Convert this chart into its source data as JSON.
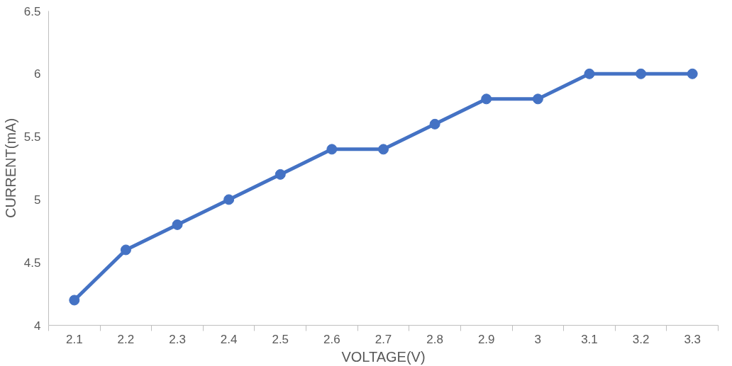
{
  "chart_data": {
    "type": "line",
    "xlabel": "VOLTAGE(V)",
    "ylabel": "CURRENT(mA)",
    "categories": [
      "2.1",
      "2.2",
      "2.3",
      "2.4",
      "2.5",
      "2.6",
      "2.7",
      "2.8",
      "2.9",
      "3",
      "3.1",
      "3.2",
      "3.3"
    ],
    "series": [
      {
        "color": "#4472c4",
        "values": [
          4.2,
          4.6,
          4.8,
          5.0,
          5.2,
          5.4,
          5.4,
          5.6,
          5.8,
          5.8,
          6.0,
          6.0,
          6.0
        ]
      }
    ],
    "ylim": [
      4,
      6.5
    ],
    "yticks": [
      4,
      4.5,
      5,
      5.5,
      6,
      6.5
    ],
    "grid": false,
    "marker": "circle",
    "line_style": "solid"
  }
}
